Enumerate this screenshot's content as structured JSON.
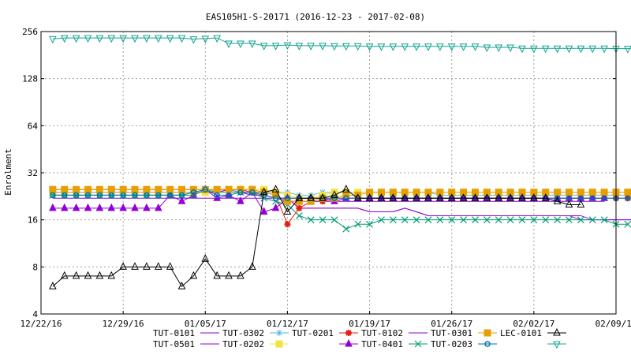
{
  "chart_data": {
    "type": "line",
    "title": "EAS105H1-S-20171 (2016-12-23 - 2017-02-08)",
    "ylabel": "Enrolment",
    "xlabel": "",
    "yscale": "log2",
    "ylim": [
      4,
      256
    ],
    "yticks": [
      4,
      8,
      16,
      32,
      64,
      128,
      256
    ],
    "xlim": [
      "2016-12-22",
      "2017-02-09"
    ],
    "xticks": [
      {
        "date": "2016-12-22",
        "label": "12/22/16"
      },
      {
        "date": "2016-12-29",
        "label": "12/29/16"
      },
      {
        "date": "2017-01-05",
        "label": "01/05/17"
      },
      {
        "date": "2017-01-12",
        "label": "01/12/17"
      },
      {
        "date": "2017-01-19",
        "label": "01/19/17"
      },
      {
        "date": "2017-01-26",
        "label": "01/26/17"
      },
      {
        "date": "2017-02-02",
        "label": "02/02/17"
      },
      {
        "date": "2017-02-09",
        "label": "02/09/17"
      }
    ],
    "grid": true,
    "legend_position": "bottom",
    "x_start": "2016-12-23",
    "x_step_days": 1,
    "series": [
      {
        "name": "TUT-0101",
        "color": "#9400d3",
        "marker": "none",
        "values": [
          24,
          24,
          24,
          24,
          24,
          24,
          24,
          24,
          24,
          24,
          24,
          24,
          24,
          24,
          24,
          25,
          24,
          23,
          23,
          22,
          22,
          19,
          19,
          19,
          19,
          19,
          19,
          18,
          18,
          18,
          19,
          18,
          17,
          17,
          17,
          17,
          17,
          17,
          17,
          17,
          17,
          17,
          17,
          17,
          17,
          17,
          16,
          16,
          16,
          16,
          16,
          16,
          16,
          16,
          16,
          16,
          16,
          16,
          16,
          16,
          16,
          16,
          16,
          16,
          16,
          16,
          16,
          16,
          16,
          16,
          16,
          16,
          16,
          16,
          16,
          16,
          16,
          16,
          16,
          16,
          16,
          16,
          16,
          16,
          16,
          16,
          16,
          16,
          16,
          16,
          16
        ]
      },
      {
        "name": "TUT-0501",
        "color": "#9400d3",
        "marker": "none",
        "values": [
          24,
          24,
          24,
          24,
          24,
          24,
          24,
          24,
          24,
          24,
          24,
          24,
          24,
          24,
          24,
          25,
          24,
          23,
          23,
          22,
          22,
          19,
          19,
          19,
          19,
          19,
          19,
          18,
          18,
          18,
          19,
          18,
          17,
          17,
          17,
          17,
          17,
          17,
          17,
          17,
          17,
          17,
          17,
          17,
          17,
          16,
          16,
          16,
          16,
          16,
          16,
          16,
          16,
          16,
          16,
          16
        ]
      },
      {
        "name": "TUT-0302",
        "color": "#56b4e9",
        "marker": "star",
        "values": [
          23,
          23,
          23,
          23,
          23,
          23,
          23,
          23,
          23,
          23,
          23,
          23,
          24,
          24,
          25,
          25,
          24,
          24,
          24,
          24,
          24,
          23,
          23,
          24,
          24,
          24,
          24,
          24,
          24,
          24,
          24,
          24,
          24,
          23,
          23,
          23,
          23,
          23,
          23,
          23,
          23,
          23,
          23,
          23,
          23,
          23,
          23,
          23,
          23,
          23,
          23,
          23,
          23,
          23,
          23,
          23,
          23,
          23,
          23,
          23,
          23,
          23,
          23,
          23,
          23,
          23,
          23,
          23,
          23,
          23,
          23,
          23,
          23,
          23,
          23,
          23,
          23,
          23,
          23,
          23,
          23,
          23,
          23,
          23,
          23,
          23,
          23,
          23,
          23,
          23,
          23,
          23,
          23,
          23,
          23,
          23,
          23,
          23,
          23,
          23,
          23,
          23,
          23
        ]
      },
      {
        "name": "TUT-0202",
        "color": "#f0e442",
        "marker": "square",
        "values": [
          24,
          24,
          24,
          24,
          24,
          24,
          24,
          24,
          24,
          24,
          24,
          24,
          24,
          24,
          25,
          25,
          25,
          25,
          25,
          24,
          23,
          22,
          22,
          23,
          24,
          24,
          24,
          24,
          24,
          24,
          24,
          24,
          24,
          24,
          24,
          24,
          24,
          24,
          24,
          24,
          24,
          24,
          24,
          24,
          24,
          24,
          24,
          24,
          24,
          24,
          24,
          24
        ]
      },
      {
        "name": "TUT-0201",
        "color": "#e51e10",
        "marker": "cross",
        "values": [
          25,
          25,
          25,
          25,
          25,
          25,
          25,
          25,
          25,
          25,
          25,
          25,
          25,
          25,
          25,
          25,
          25,
          24,
          24,
          23,
          15,
          19,
          21,
          21,
          22,
          22,
          22,
          22,
          22,
          22,
          22,
          22,
          22,
          22,
          22,
          22,
          22,
          22,
          22,
          22,
          22,
          22,
          22,
          22,
          22,
          22,
          22,
          22,
          22,
          22,
          22,
          22,
          22,
          22,
          22,
          22,
          22
        ]
      },
      {
        "name": "",
        "color": "#9400d3",
        "marker": "triangle",
        "values": [
          19,
          19,
          19,
          19,
          19,
          19,
          19,
          19,
          19,
          19,
          23,
          21,
          23,
          25,
          22,
          23,
          21,
          24,
          18,
          19,
          22,
          22,
          22,
          22,
          21,
          22,
          22,
          22,
          22,
          22,
          22,
          22,
          22,
          22,
          22,
          22,
          22,
          22,
          22,
          22,
          22,
          22,
          22,
          22,
          22,
          22,
          22,
          22
        ]
      },
      {
        "name": "TUT-0102",
        "color": "#9400d3",
        "marker": "none",
        "values": [
          22,
          22,
          22,
          22,
          22,
          22,
          22,
          22,
          22,
          22,
          22,
          22,
          22,
          22,
          22,
          22,
          22,
          22,
          22,
          22,
          21,
          21,
          21,
          21,
          21,
          21,
          21,
          21,
          21,
          21,
          21,
          21,
          21,
          21,
          21,
          21,
          21,
          21,
          21,
          21,
          21,
          21,
          21,
          21,
          21,
          21,
          21,
          21
        ]
      },
      {
        "name": "TUT-0401",
        "color": "#009e73",
        "marker": "x",
        "values": [
          23,
          23,
          23,
          23,
          23,
          23,
          23,
          23,
          23,
          23,
          23,
          23,
          23,
          25,
          24,
          24,
          24,
          24,
          22,
          21,
          20,
          17,
          16,
          16,
          16,
          14,
          15,
          15,
          16,
          16,
          16,
          16,
          16,
          16,
          16,
          16,
          16,
          16,
          16,
          16,
          16,
          16,
          16,
          16,
          16,
          16,
          16,
          16,
          15,
          15
        ]
      },
      {
        "name": "TUT-0301",
        "color": "#e69f00",
        "marker": "square",
        "values": [
          25,
          25,
          25,
          25,
          25,
          25,
          25,
          25,
          25,
          25,
          25,
          25,
          25,
          25,
          25,
          25,
          25,
          25,
          24,
          23,
          21,
          21,
          21,
          22,
          22,
          23,
          23,
          24,
          24,
          24,
          24,
          24,
          24,
          24,
          24,
          24,
          24,
          24,
          24,
          24,
          24,
          24,
          24,
          24,
          24,
          24,
          24,
          24,
          24,
          24,
          24,
          24
        ]
      },
      {
        "name": "TUT-0203",
        "color": "#0072b2",
        "marker": "circle",
        "values": [
          23,
          23,
          23,
          23,
          23,
          23,
          23,
          23,
          23,
          23,
          23,
          23,
          24,
          25,
          23,
          23,
          24,
          24,
          23,
          22,
          22,
          22,
          22,
          22,
          22,
          22,
          22,
          22,
          22,
          22,
          22,
          22,
          22,
          22,
          22,
          22,
          22,
          22,
          22,
          22,
          22,
          22,
          22,
          22,
          22,
          22,
          22,
          22,
          22,
          22,
          22,
          22
        ]
      },
      {
        "name": "LEC-0101",
        "color": "#000000",
        "marker": "triangle",
        "values": [
          6,
          7,
          7,
          7,
          7,
          7,
          8,
          8,
          8,
          8,
          8,
          6,
          7,
          9,
          7,
          7,
          7,
          8,
          24,
          25,
          18,
          22,
          22,
          22,
          23,
          25,
          22,
          22,
          22,
          22,
          22,
          22,
          22,
          22,
          22,
          22,
          22,
          22,
          22,
          22,
          22,
          22,
          22,
          21,
          20,
          20
        ]
      },
      {
        "name": "",
        "color": "#12a391",
        "marker": "triangle-down",
        "values": [
          230,
          233,
          233,
          233,
          233,
          233,
          233,
          233,
          233,
          233,
          233,
          233,
          229,
          231,
          233,
          215,
          215,
          215,
          208,
          208,
          210,
          208,
          208,
          208,
          207,
          207,
          207,
          206,
          206,
          206,
          206,
          206,
          206,
          206,
          206,
          206,
          206,
          203,
          203,
          203,
          200,
          200,
          200,
          200,
          200,
          200,
          200,
          200,
          199,
          199,
          199,
          199,
          199,
          198,
          198,
          197,
          197,
          197,
          196,
          196,
          196,
          196,
          195,
          195,
          195,
          195,
          194,
          194,
          194,
          194
        ]
      }
    ]
  }
}
